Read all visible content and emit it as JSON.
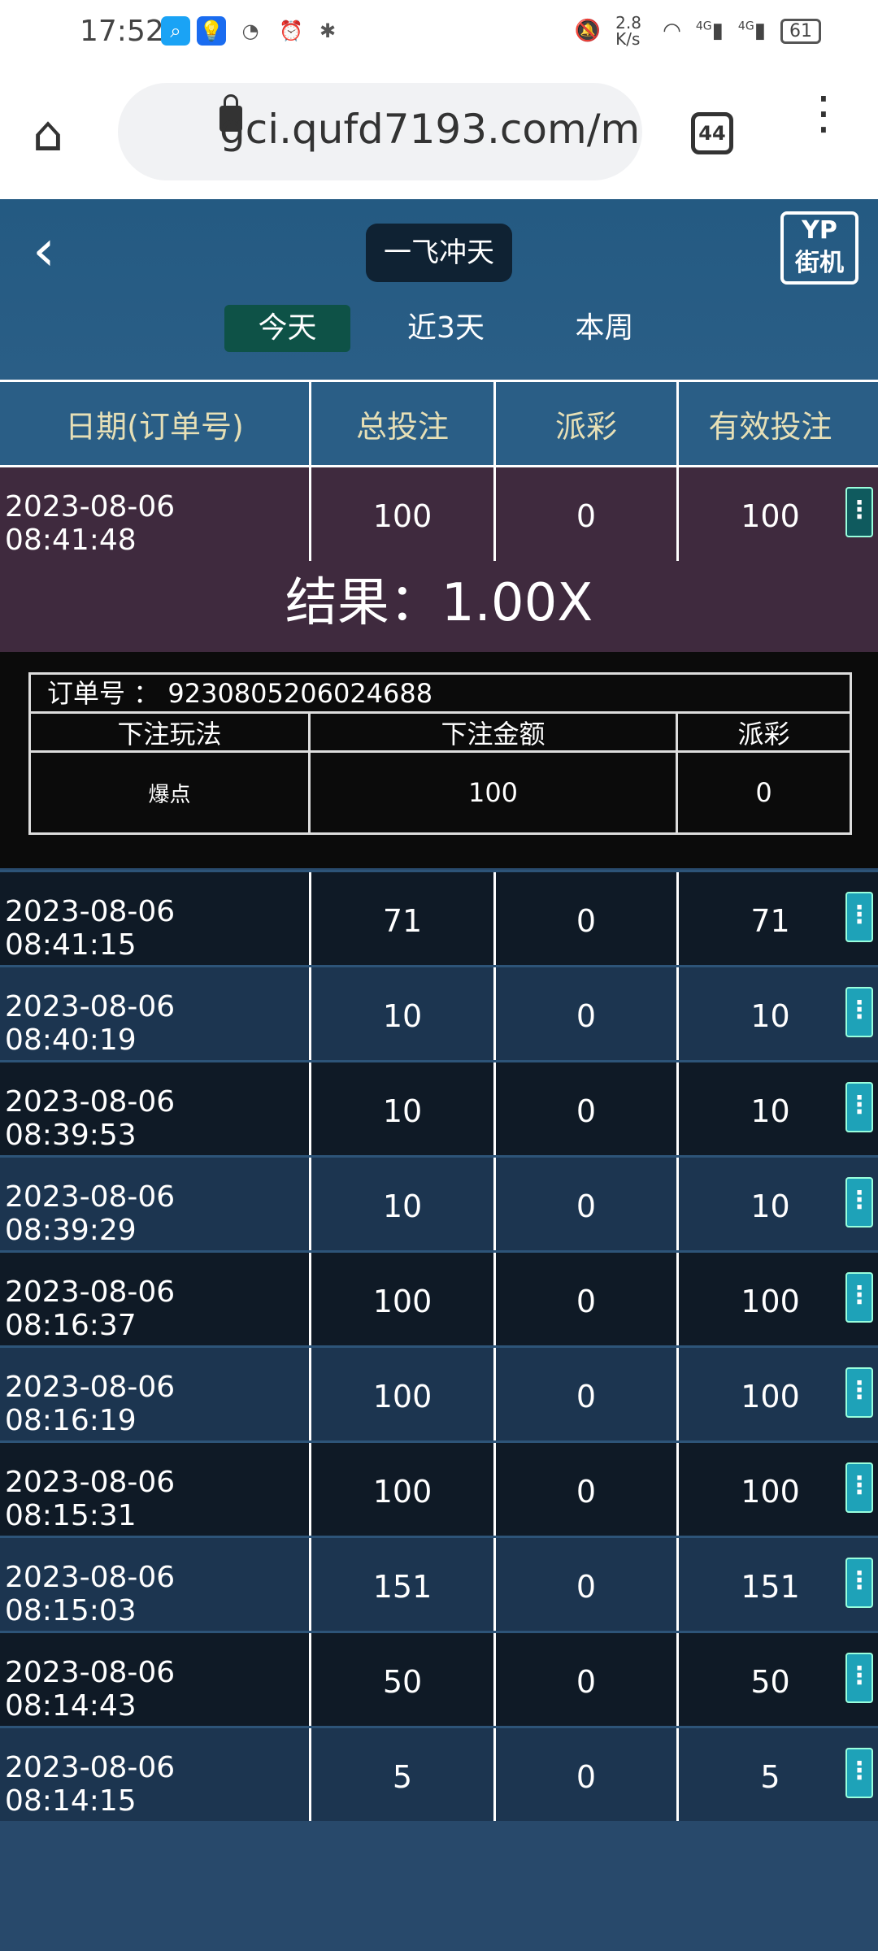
{
  "status_bar": {
    "time": "17:52",
    "net_speed": "2.8 K/s",
    "signal1": "4G",
    "signal2": "4G",
    "battery": "61"
  },
  "browser": {
    "url": "gci.qufd7193.com/m",
    "tab_count": "44"
  },
  "header": {
    "title": "一飞冲天",
    "logo": "YP街机",
    "tabs": [
      {
        "label": "今天",
        "active": true
      },
      {
        "label": "近3天"
      },
      {
        "label": "本周"
      }
    ]
  },
  "table": {
    "columns": [
      "日期(订单号)",
      "总投注",
      "派彩",
      "有效投注"
    ],
    "expanded_row": {
      "date": "2023-08-06 08:41:48",
      "total": "100",
      "payout": "0",
      "valid": "100",
      "result": "结果：1.00X",
      "detail": {
        "order_label": "订单号 ：",
        "order_no": "9230805206024688",
        "headers": [
          "下注玩法",
          "下注金额",
          "派彩"
        ],
        "values": [
          "爆点",
          "100",
          "0"
        ]
      }
    },
    "rows": [
      {
        "date": "2023-08-06 08:41:15",
        "total": "71",
        "payout": "0",
        "valid": "71"
      },
      {
        "date": "2023-08-06 08:40:19",
        "total": "10",
        "payout": "0",
        "valid": "10"
      },
      {
        "date": "2023-08-06 08:39:53",
        "total": "10",
        "payout": "0",
        "valid": "10"
      },
      {
        "date": "2023-08-06 08:39:29",
        "total": "10",
        "payout": "0",
        "valid": "10"
      },
      {
        "date": "2023-08-06 08:16:37",
        "total": "100",
        "payout": "0",
        "valid": "100"
      },
      {
        "date": "2023-08-06 08:16:19",
        "total": "100",
        "payout": "0",
        "valid": "100"
      },
      {
        "date": "2023-08-06 08:15:31",
        "total": "100",
        "payout": "0",
        "valid": "100"
      },
      {
        "date": "2023-08-06 08:15:03",
        "total": "151",
        "payout": "0",
        "valid": "151"
      },
      {
        "date": "2023-08-06 08:14:43",
        "total": "50",
        "payout": "0",
        "valid": "50"
      },
      {
        "date": "2023-08-06 08:14:15",
        "total": "5",
        "payout": "0",
        "valid": "5"
      }
    ]
  },
  "colors": {
    "header_bg": "#2a5e86",
    "row_dark": "#0f1a26",
    "row_light": "#1c3550",
    "active_tab": "#0e5247",
    "kebab": "#1ea2b8"
  }
}
